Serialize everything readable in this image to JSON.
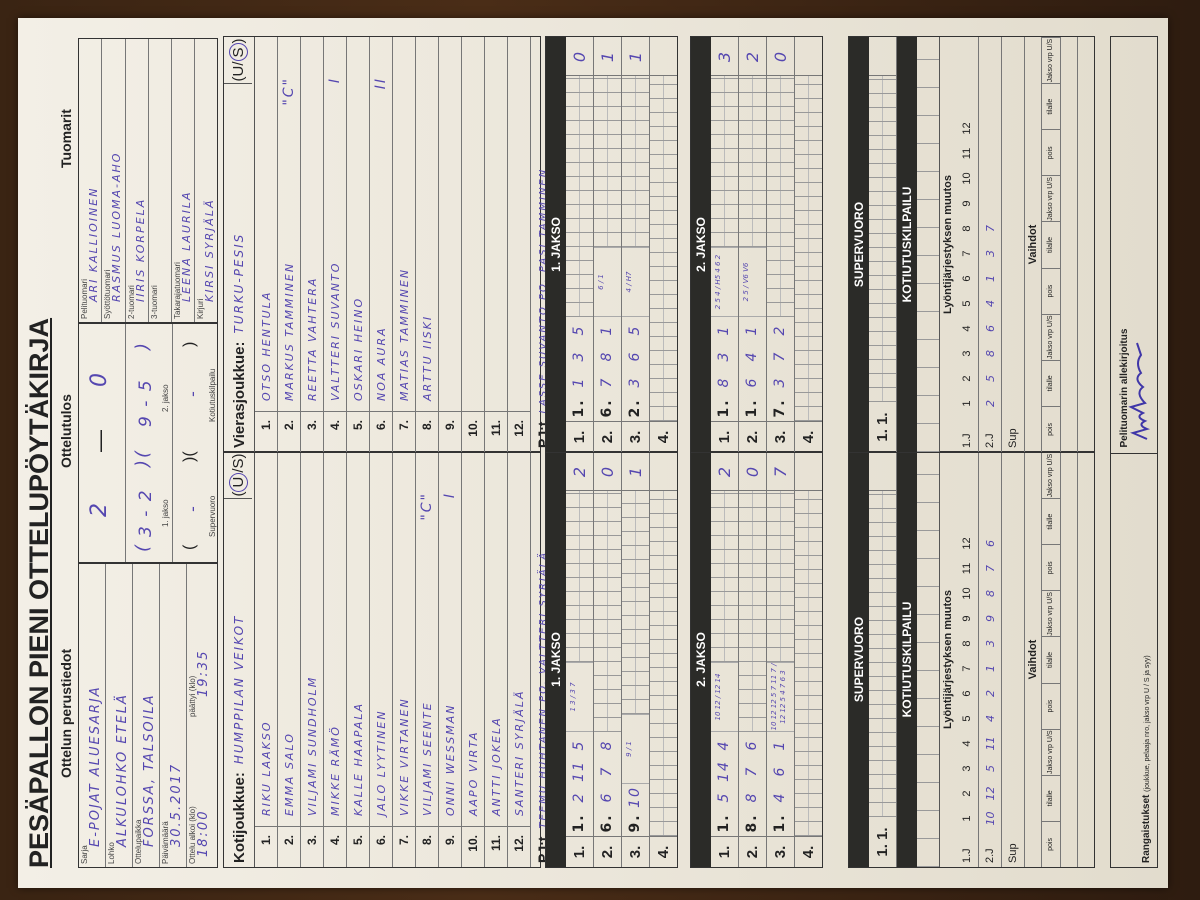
{
  "title": "PESÄPALLON PIENI OTTELUPÖYTÄKIRJA",
  "colors": {
    "ink": "#5547b0",
    "bar": "#2b2b28",
    "paper": "#efe9dc",
    "background": "#3a2413"
  },
  "basics": {
    "heading": "Ottelun perustiedot",
    "sarja_label": "Sarja",
    "sarja": "E-pojat aluesarja",
    "lohko_label": "Lohko",
    "lohko": "Alkulohko Etelä",
    "paikka_label": "Ottelupaikka",
    "paikka": "Forssa, Talsoila",
    "pvm_label": "Päivämäärä",
    "pvm": "30.5.2017",
    "alkoi_label": "Ottelu alkoi (klo)",
    "alkoi": "18:00",
    "paattyi_label": "päättyi (klo)",
    "paattyi": "19:35"
  },
  "result": {
    "heading": "Ottelutulos",
    "home": "2",
    "away": "0",
    "jakso1_label": "1. jakso",
    "jakso1": "3 - 2",
    "jakso2_label": "2. jakso",
    "jakso2": "9 - 5",
    "super_label": "Supervuoro",
    "super": "-",
    "kotiutus_label": "Kotiutuskilpailu",
    "kotiutus": "-"
  },
  "referees": {
    "heading": "Tuomarit",
    "items": [
      {
        "label": "Pelituomari",
        "name": "Ari Kallioinen"
      },
      {
        "label": "Syöttötuomari",
        "name": "Rasmus Luoma-aho"
      },
      {
        "label": "2-tuomari",
        "name": "Iiris Korpela"
      },
      {
        "label": "3-tuomari",
        "name": ""
      },
      {
        "label": "Takarajatuomari",
        "name": "Leena Laurila"
      },
      {
        "label": "Kirjuri",
        "name": "Kirsi Syrjälä"
      }
    ]
  },
  "home": {
    "label": "Kotijoukkue:",
    "name": "Humppilan Veikot",
    "us_u": "U",
    "us_s": "S",
    "selected": "U",
    "players": [
      {
        "no": "1.",
        "name": "Riku Laakso",
        "mark": ""
      },
      {
        "no": "2.",
        "name": "Emma Salo",
        "mark": ""
      },
      {
        "no": "3.",
        "name": "Viljami Sundholm",
        "mark": ""
      },
      {
        "no": "4.",
        "name": "Mikke Rämö",
        "mark": ""
      },
      {
        "no": "5.",
        "name": "Kalle Haapala",
        "mark": ""
      },
      {
        "no": "6.",
        "name": "Jalo Lyytinen",
        "mark": ""
      },
      {
        "no": "7.",
        "name": "Vikke Virtanen",
        "mark": ""
      },
      {
        "no": "8.",
        "name": "Viljami Seente",
        "mark": "\"C\""
      },
      {
        "no": "9.",
        "name": "Onni Wessman",
        "mark": "I"
      },
      {
        "no": "10.",
        "name": "Aapo Virta",
        "mark": ""
      },
      {
        "no": "11.",
        "name": "Antti Jokela",
        "mark": ""
      },
      {
        "no": "12.",
        "name": "Santeri Syrjälä",
        "mark": ""
      }
    ],
    "pj_label": "PJ:t",
    "pj": "Teemu Huhtanen PO, Valtteri Syrjälä",
    "periods": [
      {
        "title": "1. JAKSO",
        "rows": [
          {
            "label": "1.",
            "cells": [
              "1.",
              "2",
              "11",
              "5"
            ],
            "note": "1 3 / 3 7",
            "score": "2"
          },
          {
            "label": "2.",
            "cells": [
              "6.",
              "6",
              "7",
              "8"
            ],
            "note": "",
            "score": "0"
          },
          {
            "label": "3.",
            "cells": [
              "9.",
              "10"
            ],
            "note": "9 / 1",
            "score": "1"
          },
          {
            "label": "4.",
            "cells": [],
            "note": "",
            "score": ""
          }
        ]
      },
      {
        "title": "2. JAKSO",
        "rows": [
          {
            "label": "1.",
            "cells": [
              "1.",
              "5",
              "14",
              "4"
            ],
            "note": "10 12 / 12 14",
            "score": "2"
          },
          {
            "label": "2.",
            "cells": [
              "8.",
              "8",
              "7",
              "6"
            ],
            "note": "",
            "score": "0"
          },
          {
            "label": "3.",
            "cells": [
              "1.",
              "4",
              "6",
              "1"
            ],
            "note": "10 12 12 5 7 11 7 / 12 12 5 4 7 6 3",
            "score": "7"
          },
          {
            "label": "4.",
            "cells": [],
            "note": "",
            "score": ""
          }
        ]
      }
    ],
    "lineup_1j": [],
    "lineup_2j": [
      "10",
      "12",
      "5",
      "11",
      "4",
      "2",
      "1",
      "3",
      "9",
      "8",
      "7",
      "6"
    ]
  },
  "away": {
    "label": "Vierasjoukkue:",
    "name": "Turku-Pesis",
    "us_u": "U",
    "us_s": "S",
    "selected": "S",
    "players": [
      {
        "no": "1.",
        "name": "Otso Hentula",
        "mark": ""
      },
      {
        "no": "2.",
        "name": "Markus Tamminen",
        "mark": "\"C\""
      },
      {
        "no": "3.",
        "name": "Reetta Vahtera",
        "mark": ""
      },
      {
        "no": "4.",
        "name": "Valtteri Suvanto",
        "mark": "I"
      },
      {
        "no": "5.",
        "name": "Oskari Heino",
        "mark": ""
      },
      {
        "no": "6.",
        "name": "Noa Aura",
        "mark": "II"
      },
      {
        "no": "7.",
        "name": "Matias Tamminen",
        "mark": ""
      },
      {
        "no": "8.",
        "name": "Arttu Iiski",
        "mark": ""
      },
      {
        "no": "9.",
        "name": "",
        "mark": ""
      },
      {
        "no": "10.",
        "name": "",
        "mark": ""
      },
      {
        "no": "11.",
        "name": "",
        "mark": ""
      },
      {
        "no": "12.",
        "name": "",
        "mark": ""
      }
    ],
    "pj_label": "PJ:t",
    "pj": "Lasse Suvanto PO, Pasi Tamminen",
    "periods": [
      {
        "title": "1. JAKSO",
        "rows": [
          {
            "label": "1.",
            "cells": [
              "1.",
              "1",
              "3",
              "5"
            ],
            "note": "",
            "score": "0"
          },
          {
            "label": "2.",
            "cells": [
              "6.",
              "7",
              "8",
              "1"
            ],
            "note": "6 / 1",
            "score": "1"
          },
          {
            "label": "3.",
            "cells": [
              "2.",
              "3",
              "6",
              "5"
            ],
            "note": "4 / H7",
            "score": "1"
          },
          {
            "label": "4.",
            "cells": [],
            "note": "",
            "score": ""
          }
        ]
      },
      {
        "title": "2. JAKSO",
        "rows": [
          {
            "label": "1.",
            "cells": [
              "1.",
              "8",
              "3",
              "1"
            ],
            "note": "2 5 4 / H5 4 6 2",
            "score": "3"
          },
          {
            "label": "2.",
            "cells": [
              "1.",
              "6",
              "4",
              "1"
            ],
            "note": "2 5 / V6 V6",
            "score": "2"
          },
          {
            "label": "3.",
            "cells": [
              "7.",
              "3",
              "7",
              "2"
            ],
            "note": "",
            "score": "0"
          },
          {
            "label": "4.",
            "cells": [],
            "note": "",
            "score": ""
          }
        ]
      }
    ],
    "lineup_1j": [],
    "lineup_2j": [
      "2",
      "5",
      "8",
      "6",
      "4",
      "1",
      "3",
      "7"
    ]
  },
  "supervuoro": {
    "title": "SUPERVUORO",
    "row": "1. 1."
  },
  "kotiutuskilpailu": {
    "title": "KOTIUTUSKILPAILU"
  },
  "lineup": {
    "title": "Lyöntijärjestyksen muutos",
    "numbers": [
      "1",
      "2",
      "3",
      "4",
      "5",
      "6",
      "7",
      "8",
      "9",
      "10",
      "11",
      "12"
    ],
    "row1": "1.J",
    "row2": "2.J",
    "row3": "Sup"
  },
  "vaihdot": {
    "title": "Vaihdot",
    "cols": [
      "pois",
      "tilalle",
      "Jakso vrp U/S",
      "pois",
      "tilalle",
      "Jakso vrp U/S",
      "pois",
      "tilalle",
      "Jakso vrp U/S"
    ]
  },
  "rangaistukset": {
    "label": "Rangaistukset",
    "hint": "(joukkue, pelaaja nro, jakso vrp U / S ja syy)"
  },
  "signature": {
    "label": "Pelituomarin allekirjoitus"
  }
}
